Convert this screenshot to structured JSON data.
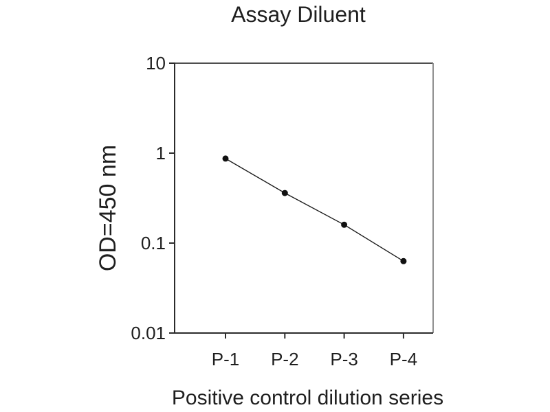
{
  "chart_data": {
    "type": "line",
    "title": "Assay Diluent",
    "xlabel": "Positive control dilution series",
    "ylabel": "OD=450 nm",
    "categories": [
      "P-1",
      "P-2",
      "P-3",
      "P-4"
    ],
    "series": [
      {
        "name": "Positive control dilution series",
        "values": [
          0.87,
          0.36,
          0.16,
          0.063
        ]
      }
    ],
    "y_scale": "log",
    "ylim": [
      0.01,
      10
    ],
    "y_ticks": [
      10,
      1,
      0.1,
      0.01
    ],
    "y_tick_labels": [
      "10",
      "1",
      "0.1",
      "0.01"
    ],
    "grid": false,
    "legend": "none",
    "marker": "filled-circle",
    "colors": {
      "text": "#1f1f1f",
      "line": "#1c1c1c",
      "marker": "#111111",
      "axis_left": "#2b2b2b",
      "axis_bottom": "#2b2b2b",
      "axis_top": "#4f4f4f",
      "axis_right": "#8f8f8f",
      "background": "#ffffff"
    }
  }
}
